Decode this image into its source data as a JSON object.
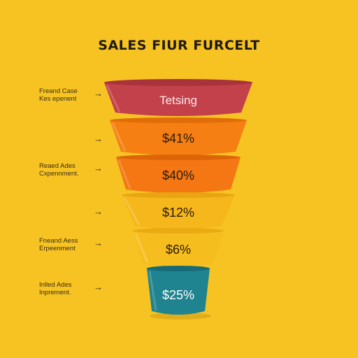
{
  "title": "SALES FIUR FURCELT",
  "funnel": {
    "stages": [
      {
        "label": "Tetsing",
        "color": "#c2414a",
        "rim": "#a8333d"
      },
      {
        "label": "$41%",
        "color": "#f57f13",
        "rim": "#e06d08"
      },
      {
        "label": "$40%",
        "color": "#f47714",
        "rim": "#dd6508"
      },
      {
        "label": "$12%",
        "color": "#f5b71c",
        "rim": "#e8a511"
      },
      {
        "label": "$6%",
        "color": "#f6bd1e",
        "rim": "#e9aa12"
      },
      {
        "label": "$25%",
        "color": "#1f8390",
        "rim": "#176b76"
      }
    ]
  },
  "side": [
    {
      "text": "Freand Case\nKes epenent",
      "arrow": "→"
    },
    {
      "text": "",
      "arrow": "→"
    },
    {
      "text": "Reaed Ades\nCxpennment.",
      "arrow": "→"
    },
    {
      "text": "",
      "arrow": "→"
    },
    {
      "text": "Fneand Aess\nErpeenment",
      "arrow": "→"
    },
    {
      "text": "Inlled Ades\nInprement.",
      "arrow": "→"
    }
  ]
}
